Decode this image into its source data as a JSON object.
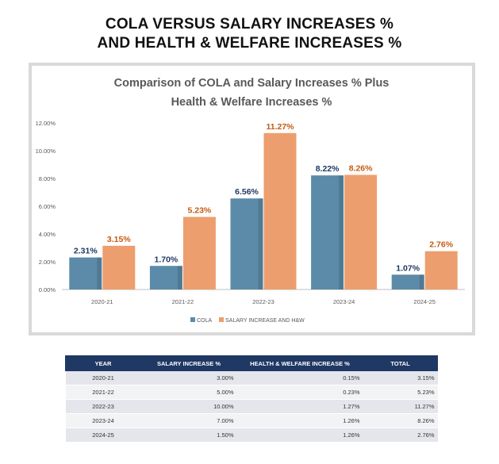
{
  "page": {
    "title_line_1": "COLA VERSUS SALARY INCREASES %",
    "title_line_2": "AND HEALTH & WELFARE INCREASES %"
  },
  "colors": {
    "cola": "#5b8ba8",
    "salary": "#ed9e6f",
    "cola_label": "#1f3864",
    "salary_label": "#c55a11"
  },
  "chart_data": {
    "type": "bar",
    "title_line_1": "Comparison of COLA and Salary Increases % Plus",
    "title_line_2": "Health & Welfare Increases %",
    "categories": [
      "2020-21",
      "2021-22",
      "2022-23",
      "2023-24",
      "2024-25"
    ],
    "series": [
      {
        "name": "COLA",
        "values": [
          2.31,
          1.7,
          6.56,
          8.22,
          1.07
        ],
        "labels": [
          "2.31%",
          "1.70%",
          "6.56%",
          "8.22%",
          "1.07%"
        ]
      },
      {
        "name": "SALARY INCREASE AND H&W",
        "values": [
          3.15,
          5.23,
          11.27,
          8.26,
          2.76
        ],
        "labels": [
          "3.15%",
          "5.23%",
          "11.27%",
          "8.26%",
          "2.76%"
        ]
      }
    ],
    "yticks": [
      "0.00%",
      "2.00%",
      "4.00%",
      "6.00%",
      "8.00%",
      "10.00%",
      "12.00%"
    ],
    "ylim": [
      0,
      12
    ],
    "xlabel": "",
    "ylabel": "",
    "legend_position": "bottom-center"
  },
  "table": {
    "headers": [
      "YEAR",
      "SALARY INCREASE %",
      "HEALTH & WELFARE INCREASE %",
      "TOTAL"
    ],
    "rows": [
      [
        "2020-21",
        "3.00%",
        "0.15%",
        "3.15%"
      ],
      [
        "2021-22",
        "5.00%",
        "0.23%",
        "5.23%"
      ],
      [
        "2022-23",
        "10.00%",
        "1.27%",
        "11.27%"
      ],
      [
        "2023-24",
        "7.00%",
        "1.26%",
        "8.26%"
      ],
      [
        "2024-25",
        "1.50%",
        "1.26%",
        "2.76%"
      ]
    ]
  }
}
